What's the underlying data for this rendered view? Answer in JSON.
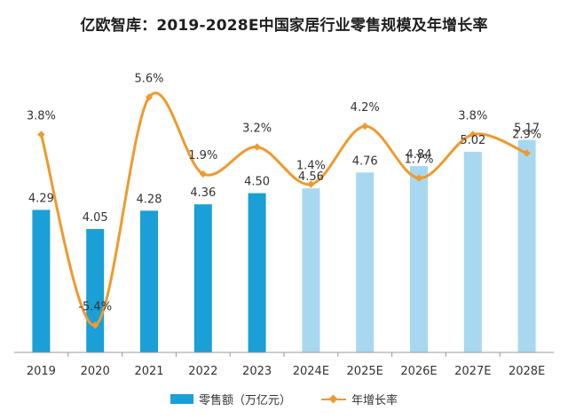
{
  "title": "亿欧智库：2019-2028E中国家居行业零售规模及年增长率",
  "legend": {
    "bar_label": "零售额（万亿元）",
    "line_label": "年增长率"
  },
  "colors": {
    "bar_actual": "#1a9fd6",
    "bar_forecast": "#a7d8f0",
    "line": "#ee9a2e",
    "axis": "#9a9a9a",
    "text": "#333333"
  },
  "chart_data": {
    "type": "bar",
    "title": "亿欧智库：2019-2028E中国家居行业零售规模及年增长率",
    "categories": [
      "2019",
      "2020",
      "2021",
      "2022",
      "2023",
      "2024E",
      "2025E",
      "2026E",
      "2027E",
      "2028E"
    ],
    "series": [
      {
        "name": "零售额（万亿元）",
        "type": "bar",
        "values": [
          4.29,
          4.05,
          4.28,
          4.36,
          4.5,
          4.56,
          4.76,
          4.84,
          5.02,
          5.17
        ],
        "labels": [
          "4.29",
          "4.05",
          "4.28",
          "4.36",
          "4.50",
          "4.56",
          "4.76",
          "4.84",
          "5.02",
          "5.17"
        ],
        "forecast_from_index": 5
      },
      {
        "name": "年增长率",
        "type": "line",
        "smooth": true,
        "values": [
          3.8,
          -5.4,
          5.6,
          1.9,
          3.2,
          1.4,
          4.2,
          1.7,
          3.8,
          2.9
        ],
        "labels": [
          "3.8%",
          "-5.4%",
          "5.6%",
          "1.9%",
          "3.2%",
          "1.4%",
          "4.2%",
          "1.7%",
          "3.8%",
          "2.9%"
        ]
      }
    ],
    "xlabel": "",
    "ylabel": "",
    "legend": "bottom",
    "grid": false
  }
}
